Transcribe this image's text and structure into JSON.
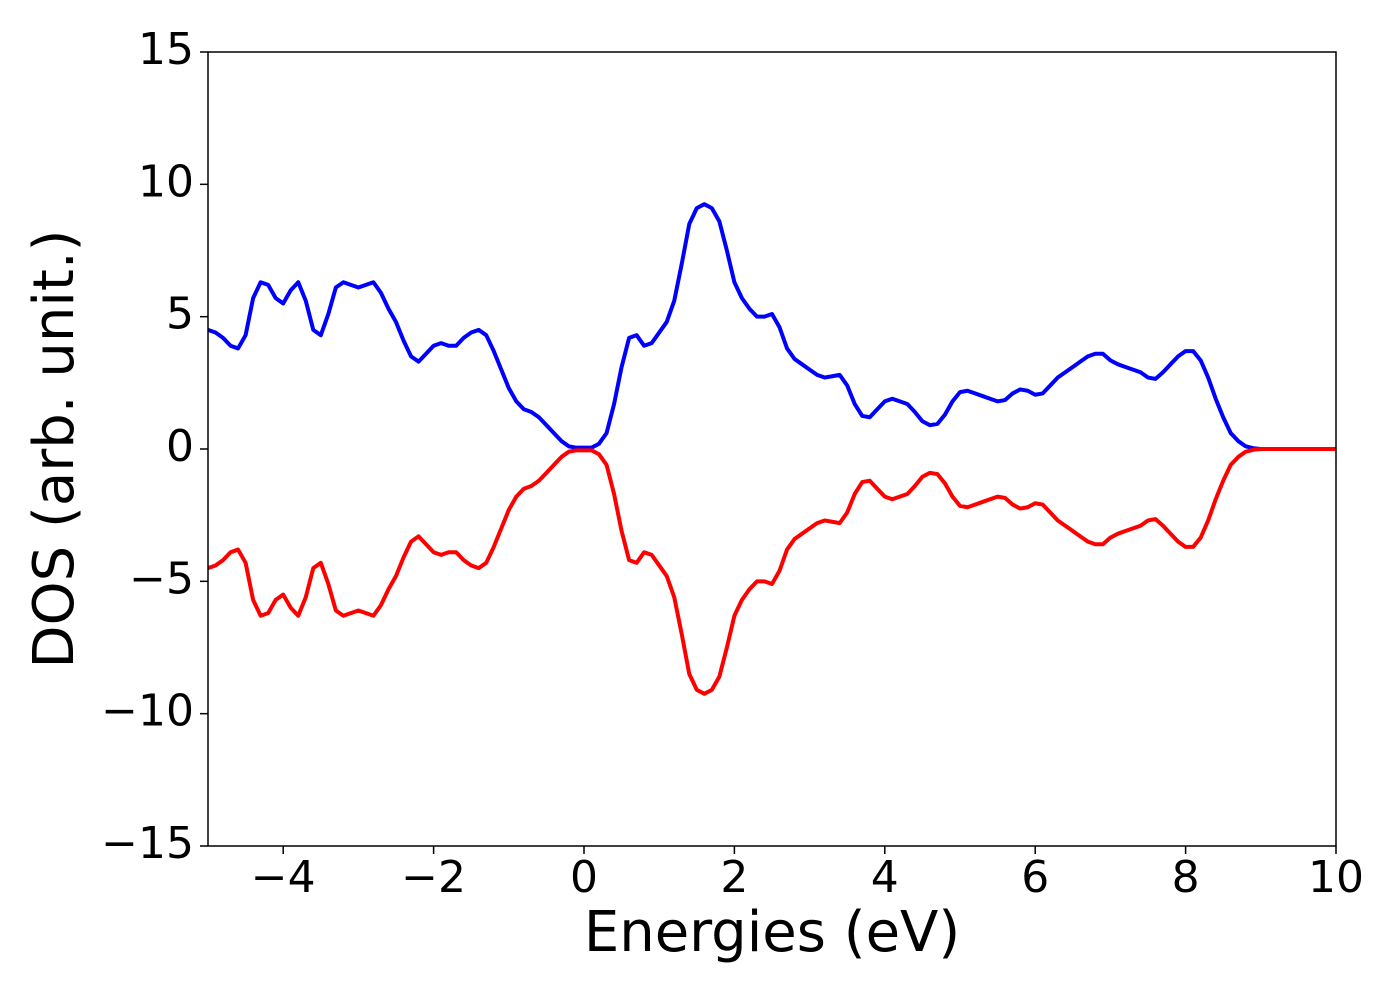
{
  "chart_data": {
    "type": "line",
    "xlabel": "Energies (eV)",
    "ylabel": "DOS (arb. unit.)",
    "xlim": [
      -5,
      10
    ],
    "ylim": [
      -15,
      15
    ],
    "xticks": [
      {
        "value": -4,
        "label": "−4"
      },
      {
        "value": -2,
        "label": "−2"
      },
      0,
      2,
      4,
      6,
      8,
      10
    ],
    "yticks": [
      {
        "value": -15,
        "label": "−15"
      },
      {
        "value": -10,
        "label": "−10"
      },
      {
        "value": -5,
        "label": "−5"
      },
      0,
      5,
      10,
      15
    ],
    "grid": false,
    "x": [
      -5.0,
      -4.9,
      -4.8,
      -4.7,
      -4.6,
      -4.5,
      -4.4,
      -4.3,
      -4.2,
      -4.1,
      -4.0,
      -3.9,
      -3.8,
      -3.7,
      -3.6,
      -3.5,
      -3.4,
      -3.3,
      -3.2,
      -3.1,
      -3.0,
      -2.9,
      -2.8,
      -2.7,
      -2.6,
      -2.5,
      -2.4,
      -2.3,
      -2.2,
      -2.1,
      -2.0,
      -1.9,
      -1.8,
      -1.7,
      -1.6,
      -1.5,
      -1.4,
      -1.3,
      -1.2,
      -1.1,
      -1.0,
      -0.9,
      -0.8,
      -0.7,
      -0.6,
      -0.5,
      -0.4,
      -0.3,
      -0.2,
      -0.1,
      0.0,
      0.1,
      0.2,
      0.3,
      0.4,
      0.5,
      0.6,
      0.7,
      0.8,
      0.9,
      1.0,
      1.1,
      1.2,
      1.3,
      1.4,
      1.5,
      1.6,
      1.7,
      1.8,
      1.9,
      2.0,
      2.1,
      2.2,
      2.3,
      2.4,
      2.5,
      2.6,
      2.7,
      2.8,
      2.9,
      3.0,
      3.1,
      3.2,
      3.3,
      3.4,
      3.5,
      3.6,
      3.7,
      3.8,
      3.9,
      4.0,
      4.1,
      4.2,
      4.3,
      4.4,
      4.5,
      4.6,
      4.7,
      4.8,
      4.9,
      5.0,
      5.1,
      5.2,
      5.3,
      5.4,
      5.5,
      5.6,
      5.7,
      5.8,
      5.9,
      6.0,
      6.1,
      6.2,
      6.3,
      6.4,
      6.5,
      6.6,
      6.7,
      6.8,
      6.9,
      7.0,
      7.1,
      7.2,
      7.3,
      7.4,
      7.5,
      7.6,
      7.7,
      7.8,
      7.9,
      8.0,
      8.1,
      8.2,
      8.3,
      8.4,
      8.5,
      8.6,
      8.7,
      8.8,
      8.9,
      9.0,
      9.1,
      9.2,
      9.3,
      9.4,
      9.5,
      9.6,
      9.7,
      9.8,
      9.9,
      10.0
    ],
    "series": [
      {
        "color": "#0000ff",
        "values": [
          4.5,
          4.4,
          4.2,
          3.9,
          3.8,
          4.3,
          5.7,
          6.3,
          6.2,
          5.7,
          5.5,
          6.0,
          6.3,
          5.6,
          4.5,
          4.3,
          5.1,
          6.1,
          6.3,
          6.2,
          6.1,
          6.2,
          6.3,
          5.9,
          5.3,
          4.8,
          4.1,
          3.5,
          3.3,
          3.6,
          3.9,
          4.0,
          3.9,
          3.9,
          4.2,
          4.4,
          4.5,
          4.3,
          3.7,
          3.0,
          2.3,
          1.8,
          1.5,
          1.4,
          1.2,
          0.9,
          0.6,
          0.3,
          0.1,
          0.05,
          0.05,
          0.05,
          0.2,
          0.6,
          1.7,
          3.1,
          4.2,
          4.3,
          3.9,
          4.0,
          4.4,
          4.8,
          5.6,
          7.0,
          8.5,
          9.1,
          9.25,
          9.1,
          8.6,
          7.5,
          6.3,
          5.7,
          5.3,
          5.0,
          5.0,
          5.1,
          4.6,
          3.8,
          3.4,
          3.2,
          3.0,
          2.8,
          2.7,
          2.75,
          2.8,
          2.4,
          1.7,
          1.25,
          1.2,
          1.5,
          1.8,
          1.9,
          1.8,
          1.7,
          1.4,
          1.05,
          0.9,
          0.95,
          1.3,
          1.8,
          2.15,
          2.2,
          2.1,
          2.0,
          1.9,
          1.8,
          1.85,
          2.1,
          2.25,
          2.2,
          2.05,
          2.1,
          2.4,
          2.7,
          2.9,
          3.1,
          3.3,
          3.5,
          3.6,
          3.6,
          3.35,
          3.2,
          3.1,
          3.0,
          2.9,
          2.7,
          2.65,
          2.9,
          3.2,
          3.5,
          3.7,
          3.7,
          3.35,
          2.7,
          1.9,
          1.2,
          0.6,
          0.3,
          0.1,
          0.03,
          0,
          0,
          0,
          0,
          0,
          0,
          0,
          0,
          0,
          0,
          0
        ]
      },
      {
        "color": "#ff0000",
        "values": [
          -4.5,
          -4.4,
          -4.2,
          -3.9,
          -3.8,
          -4.3,
          -5.7,
          -6.3,
          -6.2,
          -5.7,
          -5.5,
          -6.0,
          -6.3,
          -5.6,
          -4.5,
          -4.3,
          -5.1,
          -6.1,
          -6.3,
          -6.2,
          -6.1,
          -6.2,
          -6.3,
          -5.9,
          -5.3,
          -4.8,
          -4.1,
          -3.5,
          -3.3,
          -3.6,
          -3.9,
          -4.0,
          -3.9,
          -3.9,
          -4.2,
          -4.4,
          -4.5,
          -4.3,
          -3.7,
          -3.0,
          -2.3,
          -1.8,
          -1.5,
          -1.4,
          -1.2,
          -0.9,
          -0.6,
          -0.3,
          -0.1,
          -0.05,
          -0.05,
          -0.05,
          -0.2,
          -0.6,
          -1.7,
          -3.1,
          -4.2,
          -4.3,
          -3.9,
          -4.0,
          -4.4,
          -4.8,
          -5.6,
          -7.0,
          -8.5,
          -9.1,
          -9.25,
          -9.1,
          -8.6,
          -7.5,
          -6.3,
          -5.7,
          -5.3,
          -5.0,
          -5.0,
          -5.1,
          -4.6,
          -3.8,
          -3.4,
          -3.2,
          -3.0,
          -2.8,
          -2.7,
          -2.75,
          -2.8,
          -2.4,
          -1.7,
          -1.25,
          -1.2,
          -1.5,
          -1.8,
          -1.9,
          -1.8,
          -1.7,
          -1.4,
          -1.05,
          -0.9,
          -0.95,
          -1.3,
          -1.8,
          -2.15,
          -2.2,
          -2.1,
          -2.0,
          -1.9,
          -1.8,
          -1.85,
          -2.1,
          -2.25,
          -2.2,
          -2.05,
          -2.1,
          -2.4,
          -2.7,
          -2.9,
          -3.1,
          -3.3,
          -3.5,
          -3.6,
          -3.6,
          -3.35,
          -3.2,
          -3.1,
          -3.0,
          -2.9,
          -2.7,
          -2.65,
          -2.9,
          -3.2,
          -3.5,
          -3.7,
          -3.7,
          -3.35,
          -2.7,
          -1.9,
          -1.2,
          -0.6,
          -0.3,
          -0.1,
          -0.03,
          0,
          0,
          0,
          0,
          0,
          0,
          0,
          0,
          0,
          0,
          0
        ]
      }
    ]
  }
}
